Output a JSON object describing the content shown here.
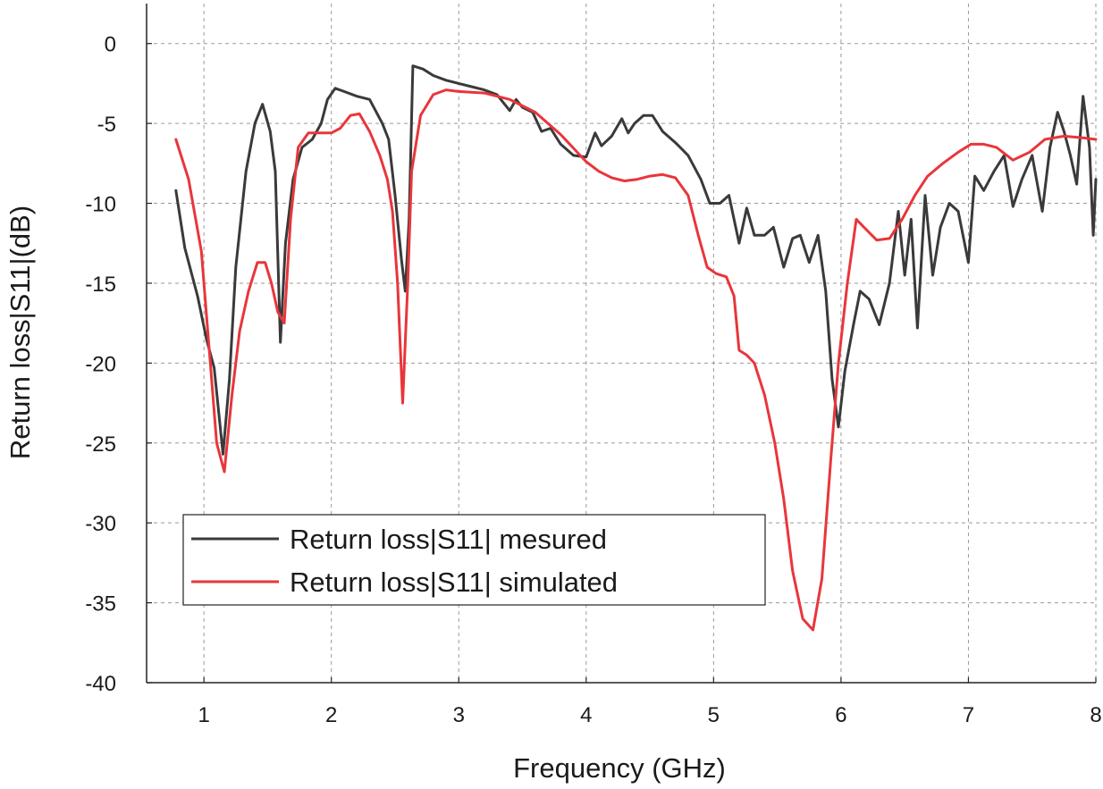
{
  "chart_data": {
    "type": "line",
    "title": "",
    "xlabel": "Frequency (GHz)",
    "ylabel": "Return loss|S11|(dB)",
    "xlim": [
      0.55,
      8.0
    ],
    "ylim": [
      -40,
      2.5
    ],
    "xticks": [
      1,
      2,
      3,
      4,
      5,
      6,
      7,
      8
    ],
    "yticks": [
      0,
      -5,
      -10,
      -15,
      -20,
      -25,
      -30,
      -35,
      -40
    ],
    "grid": true,
    "legend_position": "lower-left",
    "series": [
      {
        "name": "Return loss|S11| mesured",
        "color": "#3a3a3a",
        "points": [
          [
            0.78,
            -9.2
          ],
          [
            0.85,
            -12.8
          ],
          [
            0.95,
            -15.8
          ],
          [
            1.02,
            -18.5
          ],
          [
            1.08,
            -20.3
          ],
          [
            1.15,
            -25.7
          ],
          [
            1.2,
            -21.0
          ],
          [
            1.25,
            -14.0
          ],
          [
            1.33,
            -8.0
          ],
          [
            1.4,
            -5.0
          ],
          [
            1.46,
            -3.8
          ],
          [
            1.52,
            -5.5
          ],
          [
            1.56,
            -8.0
          ],
          [
            1.6,
            -18.7
          ],
          [
            1.64,
            -12.5
          ],
          [
            1.7,
            -8.5
          ],
          [
            1.77,
            -6.5
          ],
          [
            1.85,
            -6.0
          ],
          [
            1.92,
            -5.0
          ],
          [
            1.97,
            -3.5
          ],
          [
            2.03,
            -2.8
          ],
          [
            2.1,
            -3.0
          ],
          [
            2.2,
            -3.3
          ],
          [
            2.3,
            -3.5
          ],
          [
            2.4,
            -5.0
          ],
          [
            2.45,
            -6.0
          ],
          [
            2.5,
            -9.5
          ],
          [
            2.55,
            -13.5
          ],
          [
            2.58,
            -15.5
          ],
          [
            2.61,
            -11.0
          ],
          [
            2.64,
            -1.4
          ],
          [
            2.72,
            -1.6
          ],
          [
            2.8,
            -2.0
          ],
          [
            2.9,
            -2.3
          ],
          [
            3.0,
            -2.5
          ],
          [
            3.1,
            -2.7
          ],
          [
            3.2,
            -2.9
          ],
          [
            3.3,
            -3.2
          ],
          [
            3.4,
            -4.2
          ],
          [
            3.45,
            -3.5
          ],
          [
            3.5,
            -4.0
          ],
          [
            3.58,
            -4.3
          ],
          [
            3.65,
            -5.5
          ],
          [
            3.72,
            -5.3
          ],
          [
            3.8,
            -6.3
          ],
          [
            3.9,
            -7.0
          ],
          [
            4.0,
            -7.1
          ],
          [
            4.07,
            -5.6
          ],
          [
            4.12,
            -6.4
          ],
          [
            4.2,
            -5.8
          ],
          [
            4.28,
            -4.7
          ],
          [
            4.33,
            -5.6
          ],
          [
            4.38,
            -5.0
          ],
          [
            4.45,
            -4.5
          ],
          [
            4.52,
            -4.5
          ],
          [
            4.6,
            -5.5
          ],
          [
            4.7,
            -6.2
          ],
          [
            4.8,
            -7.0
          ],
          [
            4.9,
            -8.5
          ],
          [
            4.97,
            -10.0
          ],
          [
            5.05,
            -10.0
          ],
          [
            5.12,
            -9.5
          ],
          [
            5.2,
            -12.5
          ],
          [
            5.26,
            -10.3
          ],
          [
            5.32,
            -12.0
          ],
          [
            5.4,
            -12.0
          ],
          [
            5.47,
            -11.5
          ],
          [
            5.55,
            -14.0
          ],
          [
            5.62,
            -12.2
          ],
          [
            5.68,
            -12.0
          ],
          [
            5.75,
            -13.7
          ],
          [
            5.82,
            -12.0
          ],
          [
            5.88,
            -15.5
          ],
          [
            5.93,
            -21.0
          ],
          [
            5.98,
            -24.0
          ],
          [
            6.03,
            -20.5
          ],
          [
            6.1,
            -17.5
          ],
          [
            6.15,
            -15.5
          ],
          [
            6.22,
            -16.0
          ],
          [
            6.3,
            -17.6
          ],
          [
            6.38,
            -15.0
          ],
          [
            6.45,
            -10.5
          ],
          [
            6.5,
            -14.5
          ],
          [
            6.55,
            -11.0
          ],
          [
            6.6,
            -17.8
          ],
          [
            6.66,
            -9.5
          ],
          [
            6.72,
            -14.5
          ],
          [
            6.78,
            -11.5
          ],
          [
            6.85,
            -10.0
          ],
          [
            6.92,
            -10.5
          ],
          [
            7.0,
            -13.7
          ],
          [
            7.05,
            -8.3
          ],
          [
            7.12,
            -9.2
          ],
          [
            7.2,
            -8.0
          ],
          [
            7.28,
            -7.0
          ],
          [
            7.35,
            -10.2
          ],
          [
            7.42,
            -8.5
          ],
          [
            7.5,
            -7.0
          ],
          [
            7.58,
            -10.5
          ],
          [
            7.64,
            -6.5
          ],
          [
            7.7,
            -4.3
          ],
          [
            7.75,
            -5.5
          ],
          [
            7.8,
            -7.0
          ],
          [
            7.85,
            -8.8
          ],
          [
            7.9,
            -3.3
          ],
          [
            7.95,
            -6.5
          ],
          [
            7.98,
            -12.0
          ],
          [
            8.0,
            -8.5
          ]
        ]
      },
      {
        "name": "Return loss|S11| simulated",
        "color": "#e8363b",
        "points": [
          [
            0.78,
            -6.0
          ],
          [
            0.88,
            -8.5
          ],
          [
            0.98,
            -13.0
          ],
          [
            1.05,
            -20.0
          ],
          [
            1.1,
            -25.0
          ],
          [
            1.16,
            -26.8
          ],
          [
            1.22,
            -22.0
          ],
          [
            1.28,
            -18.0
          ],
          [
            1.35,
            -15.5
          ],
          [
            1.42,
            -13.7
          ],
          [
            1.48,
            -13.7
          ],
          [
            1.53,
            -15.0
          ],
          [
            1.58,
            -16.8
          ],
          [
            1.63,
            -17.5
          ],
          [
            1.68,
            -11.0
          ],
          [
            1.74,
            -6.5
          ],
          [
            1.82,
            -5.6
          ],
          [
            1.9,
            -5.6
          ],
          [
            2.0,
            -5.6
          ],
          [
            2.07,
            -5.3
          ],
          [
            2.15,
            -4.5
          ],
          [
            2.22,
            -4.4
          ],
          [
            2.3,
            -5.5
          ],
          [
            2.38,
            -7.0
          ],
          [
            2.44,
            -8.5
          ],
          [
            2.48,
            -10.5
          ],
          [
            2.52,
            -15.0
          ],
          [
            2.56,
            -22.5
          ],
          [
            2.6,
            -15.0
          ],
          [
            2.63,
            -8.0
          ],
          [
            2.7,
            -4.5
          ],
          [
            2.8,
            -3.2
          ],
          [
            2.9,
            -2.9
          ],
          [
            3.0,
            -3.0
          ],
          [
            3.2,
            -3.1
          ],
          [
            3.4,
            -3.5
          ],
          [
            3.6,
            -4.3
          ],
          [
            3.8,
            -5.7
          ],
          [
            4.0,
            -7.4
          ],
          [
            4.1,
            -8.0
          ],
          [
            4.2,
            -8.4
          ],
          [
            4.3,
            -8.6
          ],
          [
            4.4,
            -8.5
          ],
          [
            4.5,
            -8.3
          ],
          [
            4.6,
            -8.2
          ],
          [
            4.7,
            -8.4
          ],
          [
            4.8,
            -9.5
          ],
          [
            4.88,
            -12.0
          ],
          [
            4.95,
            -14.0
          ],
          [
            5.02,
            -14.4
          ],
          [
            5.1,
            -14.6
          ],
          [
            5.16,
            -15.8
          ],
          [
            5.2,
            -19.2
          ],
          [
            5.26,
            -19.5
          ],
          [
            5.32,
            -20.0
          ],
          [
            5.4,
            -22.0
          ],
          [
            5.48,
            -25.0
          ],
          [
            5.55,
            -28.5
          ],
          [
            5.62,
            -33.0
          ],
          [
            5.7,
            -36.0
          ],
          [
            5.78,
            -36.7
          ],
          [
            5.85,
            -33.5
          ],
          [
            5.92,
            -26.0
          ],
          [
            5.98,
            -20.0
          ],
          [
            6.05,
            -15.0
          ],
          [
            6.12,
            -11.0
          ],
          [
            6.18,
            -11.5
          ],
          [
            6.28,
            -12.3
          ],
          [
            6.38,
            -12.2
          ],
          [
            6.48,
            -11.0
          ],
          [
            6.58,
            -9.5
          ],
          [
            6.68,
            -8.3
          ],
          [
            6.8,
            -7.5
          ],
          [
            6.92,
            -6.8
          ],
          [
            7.02,
            -6.3
          ],
          [
            7.12,
            -6.3
          ],
          [
            7.22,
            -6.5
          ],
          [
            7.35,
            -7.3
          ],
          [
            7.48,
            -6.8
          ],
          [
            7.6,
            -6.0
          ],
          [
            7.75,
            -5.8
          ],
          [
            7.9,
            -5.9
          ],
          [
            8.0,
            -6.0
          ]
        ]
      }
    ]
  }
}
